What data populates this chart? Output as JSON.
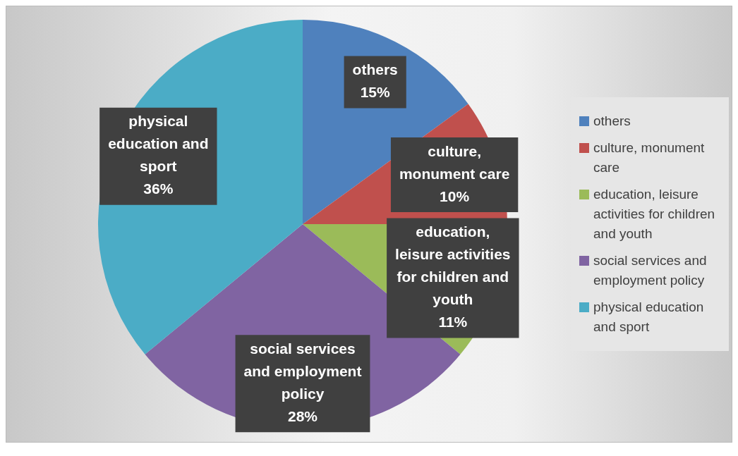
{
  "chart_data": {
    "type": "pie",
    "categories": [
      "others",
      "culture, monument care",
      "education, leisure activities for children and youth",
      "social services and employment policy",
      "physical education and sport"
    ],
    "values": [
      15,
      10,
      11,
      28,
      36
    ],
    "value_labels": [
      "15%",
      "10%",
      "11%",
      "28%",
      "36%"
    ],
    "colors": [
      "#4f81bd",
      "#c0504d",
      "#9bbb59",
      "#8064a2",
      "#4bacc6"
    ],
    "legend": "right"
  }
}
